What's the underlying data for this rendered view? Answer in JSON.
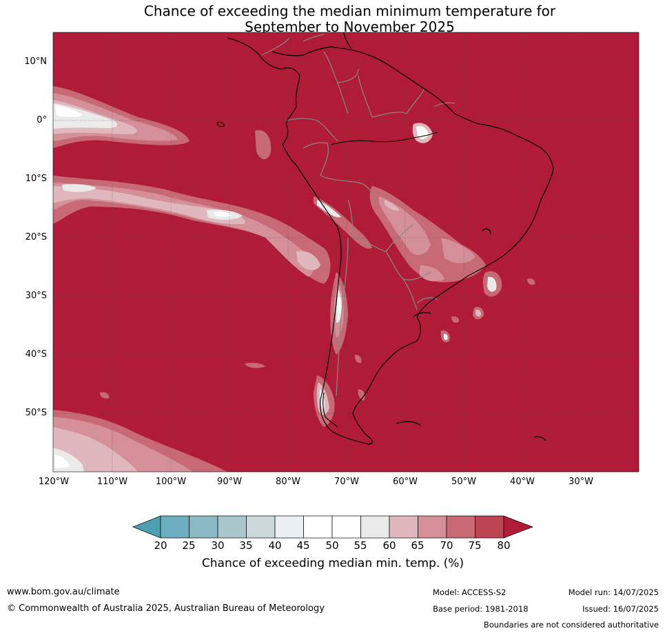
{
  "title_line1": "Chance of exceeding the median minimum temperature for",
  "title_line2": "September to November 2025",
  "lat_labels": [
    "10°N",
    "0°",
    "10°S",
    "20°S",
    "30°S",
    "40°S",
    "50°S"
  ],
  "lon_labels": [
    "120°W",
    "110°W",
    "100°W",
    "90°W",
    "80°W",
    "70°W",
    "60°W",
    "50°W",
    "40°W",
    "30°W"
  ],
  "colorbar": {
    "ticks": [
      "20",
      "25",
      "30",
      "35",
      "40",
      "45",
      "50",
      "55",
      "60",
      "65",
      "70",
      "75",
      "80"
    ],
    "colors": [
      "#4ba0b1",
      "#6baebe",
      "#8bb9c5",
      "#a9c6cc",
      "#ccd8da",
      "#e9eff2",
      "#ffffff",
      "#ffffff",
      "#ebeaea",
      "#dfb7bd",
      "#d48f98",
      "#c86a75",
      "#bd4453",
      "#b01c38"
    ],
    "label": "Chance of exceeding median min. temp. (%)"
  },
  "footer": {
    "website": "www.bom.gov.au/climate",
    "copyright": "© Commonwealth of Australia 2025, Australian Bureau of Meteorology",
    "model": "Model: ACCESS-S2",
    "base_period": "Base period: 1981-2018",
    "model_run": "Model run: 14/07/2025",
    "issued": "Issued: 16/07/2025",
    "disclaimer": "Boundaries are not considered authoritative"
  }
}
